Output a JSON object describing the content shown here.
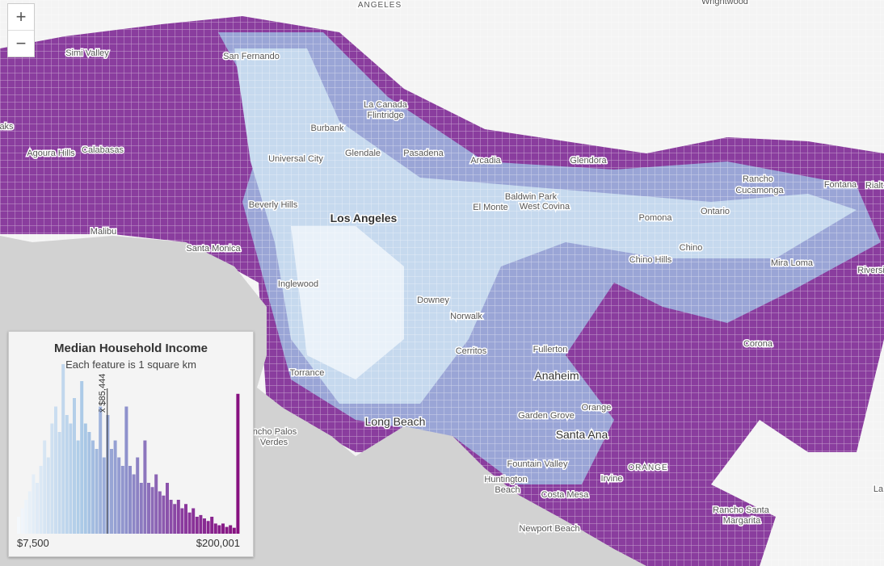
{
  "zoom": {
    "in": "+",
    "out": "−"
  },
  "legend": {
    "title": "Median Household Income",
    "subtitle": "Each feature is 1 square km",
    "min": {
      "value": 7500,
      "label": "$7,500"
    },
    "max": {
      "value": 200001,
      "label": "$200,001"
    },
    "mean": {
      "value": 85444,
      "label": "x̄ $85,444"
    },
    "counts": [
      20,
      30,
      40,
      50,
      70,
      60,
      80,
      110,
      90,
      130,
      150,
      120,
      200,
      140,
      130,
      160,
      110,
      180,
      130,
      120,
      110,
      100,
      150,
      90,
      140,
      100,
      110,
      90,
      80,
      150,
      80,
      70,
      90,
      60,
      110,
      60,
      55,
      70,
      50,
      45,
      60,
      40,
      35,
      40,
      30,
      35,
      25,
      30,
      20,
      22,
      18,
      15,
      20,
      12,
      10,
      12,
      8,
      10,
      7,
      165
    ]
  },
  "labels": [
    "ANGELES",
    "Wrightwood",
    "Simi Valley",
    "San Fernando",
    "La Canada",
    "Flintridge",
    "Burbank",
    "aks",
    "Calabasas",
    "Agoura Hills",
    "Universal City",
    "Glendale",
    "Pasadena",
    "Arcadia",
    "Glendora",
    "Rancho",
    "Cucamonga",
    "Fontana",
    "Rialt",
    "Baldwin Park",
    "West Covina",
    "El Monte",
    "Beverly Hills",
    "Los Angeles",
    "Pomona",
    "Ontario",
    "Malibu",
    "Santa Monica",
    "Chino",
    "Chino Hills",
    "Mira Loma",
    "Riversi",
    "Inglewood",
    "Downey",
    "Norwalk",
    "Corona",
    "Cerritos",
    "Fullerton",
    "Torrance",
    "Anaheim",
    "Orange",
    "Long Beach",
    "Garden Grove",
    "Santa Ana",
    "ncho Palos",
    "Verdes",
    "ORANGE",
    "Fountain Valley",
    "Irvine",
    "Huntington",
    "Beach",
    "Costa Mesa",
    "Rancho Santa",
    "Margarita",
    "Newport Beach",
    "La"
  ]
}
